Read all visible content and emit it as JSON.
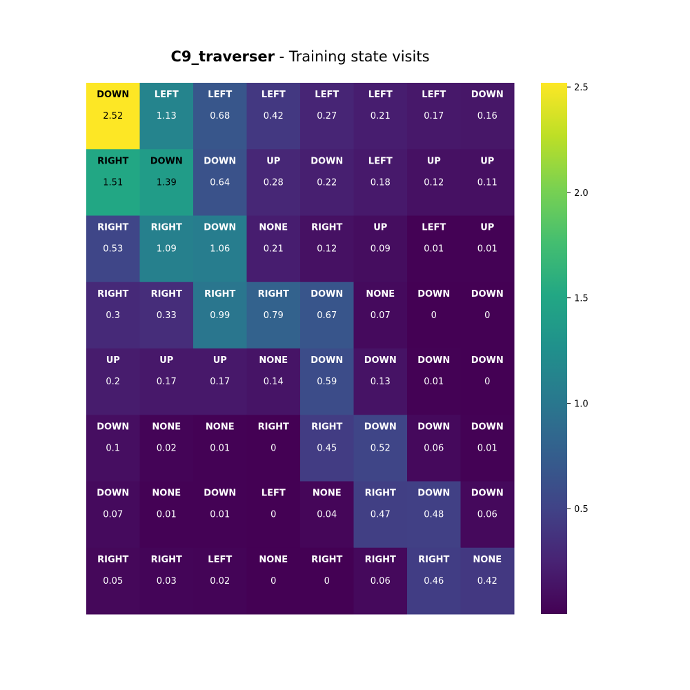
{
  "chart_data": {
    "type": "heatmap",
    "title_bold": "C9_traverser",
    "title_rest": " - Training state visits",
    "xlabel": "",
    "ylabel": "",
    "grid": false,
    "colormap": "viridis",
    "vmin": 0,
    "vmax": 2.52,
    "colorbar_ticks": [
      "0.5",
      "1.0",
      "1.5",
      "2.0",
      "2.5"
    ],
    "colorbar_tick_values": [
      0.5,
      1.0,
      1.5,
      2.0,
      2.5
    ],
    "values": [
      [
        2.52,
        1.13,
        0.68,
        0.42,
        0.27,
        0.21,
        0.17,
        0.16
      ],
      [
        1.51,
        1.39,
        0.64,
        0.28,
        0.22,
        0.18,
        0.12,
        0.11
      ],
      [
        0.53,
        1.09,
        1.06,
        0.21,
        0.12,
        0.09,
        0.01,
        0.01
      ],
      [
        0.3,
        0.33,
        0.99,
        0.79,
        0.67,
        0.07,
        0,
        0
      ],
      [
        0.2,
        0.17,
        0.17,
        0.14,
        0.59,
        0.13,
        0.01,
        0
      ],
      [
        0.1,
        0.02,
        0.01,
        0,
        0.45,
        0.52,
        0.06,
        0.01
      ],
      [
        0.07,
        0.01,
        0.01,
        0,
        0.04,
        0.47,
        0.48,
        0.06
      ],
      [
        0.05,
        0.03,
        0.02,
        0,
        0,
        0.06,
        0.46,
        0.42
      ]
    ],
    "actions": [
      [
        "DOWN",
        "LEFT",
        "LEFT",
        "LEFT",
        "LEFT",
        "LEFT",
        "LEFT",
        "DOWN"
      ],
      [
        "RIGHT",
        "DOWN",
        "DOWN",
        "UP",
        "DOWN",
        "LEFT",
        "UP",
        "UP"
      ],
      [
        "RIGHT",
        "RIGHT",
        "DOWN",
        "NONE",
        "RIGHT",
        "UP",
        "LEFT",
        "UP"
      ],
      [
        "RIGHT",
        "RIGHT",
        "RIGHT",
        "RIGHT",
        "DOWN",
        "NONE",
        "DOWN",
        "DOWN"
      ],
      [
        "UP",
        "UP",
        "UP",
        "NONE",
        "DOWN",
        "DOWN",
        "DOWN",
        "DOWN"
      ],
      [
        "DOWN",
        "NONE",
        "NONE",
        "RIGHT",
        "RIGHT",
        "DOWN",
        "DOWN",
        "DOWN"
      ],
      [
        "DOWN",
        "NONE",
        "DOWN",
        "LEFT",
        "NONE",
        "RIGHT",
        "DOWN",
        "DOWN"
      ],
      [
        "RIGHT",
        "RIGHT",
        "LEFT",
        "NONE",
        "RIGHT",
        "RIGHT",
        "RIGHT",
        "NONE"
      ]
    ]
  }
}
